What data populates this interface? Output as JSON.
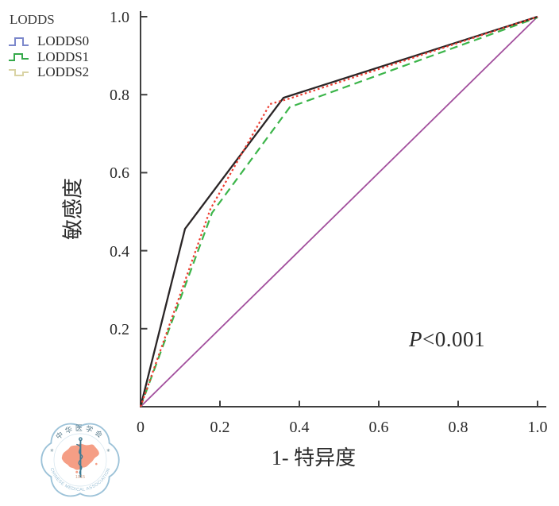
{
  "chart_data": {
    "type": "line",
    "subtype": "roc-curves",
    "xlabel": "1- 特异度",
    "ylabel": "敏感度",
    "xlim": [
      0,
      1
    ],
    "ylim": [
      0,
      1
    ],
    "grid": false,
    "x_ticks": [
      "0",
      "0.2",
      "0.4",
      "0.6",
      "0.8",
      "1.0"
    ],
    "y_ticks": [
      "0.2",
      "0.4",
      "0.6",
      "0.8",
      "1.0"
    ],
    "annotation": "P<0.001",
    "legend_position": "top-left",
    "legend": {
      "title": "LODDS",
      "entries": [
        {
          "label": "LODDS0",
          "color": "#7b87cb",
          "icon": "step-line-icon"
        },
        {
          "label": "LODDS1",
          "color": "#35a94a",
          "icon": "step-line-icon"
        },
        {
          "label": "LODDS2",
          "color": "#d9d3a4",
          "icon": "step-line-icon"
        }
      ]
    },
    "series": [
      {
        "name": "reference-diagonal",
        "color": "#a24f9d",
        "style": "solid",
        "width": 1.8,
        "points": [
          [
            0,
            0
          ],
          [
            1,
            1
          ]
        ]
      },
      {
        "name": "LODDS2",
        "color": "#3cb54a",
        "style": "dashed",
        "width": 2.2,
        "points": [
          [
            0,
            0
          ],
          [
            0.18,
            0.497
          ],
          [
            0.376,
            0.768
          ],
          [
            1,
            0.998
          ]
        ]
      },
      {
        "name": "LODDS0",
        "color": "#2a2526",
        "style": "solid",
        "width": 2.3,
        "points": [
          [
            0,
            0
          ],
          [
            0.112,
            0.456
          ],
          [
            0.36,
            0.792
          ],
          [
            1,
            1
          ]
        ]
      },
      {
        "name": "LODDS1",
        "color": "#ee3c30",
        "style": "dotted",
        "width": 2.2,
        "points": [
          [
            0,
            0
          ],
          [
            0.176,
            0.507
          ],
          [
            0.326,
            0.776
          ],
          [
            0.375,
            0.79
          ],
          [
            1,
            1
          ]
        ]
      }
    ],
    "axis_color": "#3f3f3f"
  },
  "logo": {
    "top_text": "中华医学会",
    "year": "1915",
    "bottom_text": "CHINESE MEDICAL ASSOCIATION",
    "ring_color": "#9cc2d8",
    "map_color": "#f59e85",
    "staff_color": "#3d7a93",
    "top_text_color": "#567a8b",
    "bottom_text_color": "#9cc0d6",
    "year_color": "#cf9d83",
    "star_glyph": "✳"
  }
}
